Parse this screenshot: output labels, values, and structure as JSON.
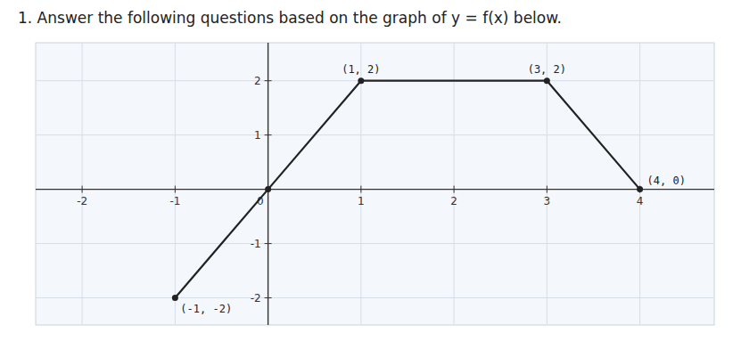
{
  "chart_data": {
    "type": "line",
    "title": "1.  Answer the following questions based on the graph of y = f(x) below.",
    "x": [
      -1,
      0,
      1,
      3,
      4
    ],
    "values": [
      -2,
      0,
      2,
      2,
      0
    ],
    "color": "#222222",
    "marker": "circle",
    "xlim": [
      -2.5,
      4.8
    ],
    "ylim": [
      -2.5,
      2.7
    ],
    "xticks": [
      -2,
      -1,
      0,
      1,
      2,
      3,
      4
    ],
    "yticks": [
      -2,
      -1,
      1,
      2
    ],
    "grid": true,
    "annotations": [
      {
        "x": 1,
        "y": 2,
        "text": "(1, 2)"
      },
      {
        "x": 3,
        "y": 2,
        "text": "(3, 2)"
      },
      {
        "x": 4,
        "y": 0,
        "text": "(4, 0)"
      },
      {
        "x": -1,
        "y": -2,
        "text": "(-1, -2)"
      }
    ]
  }
}
